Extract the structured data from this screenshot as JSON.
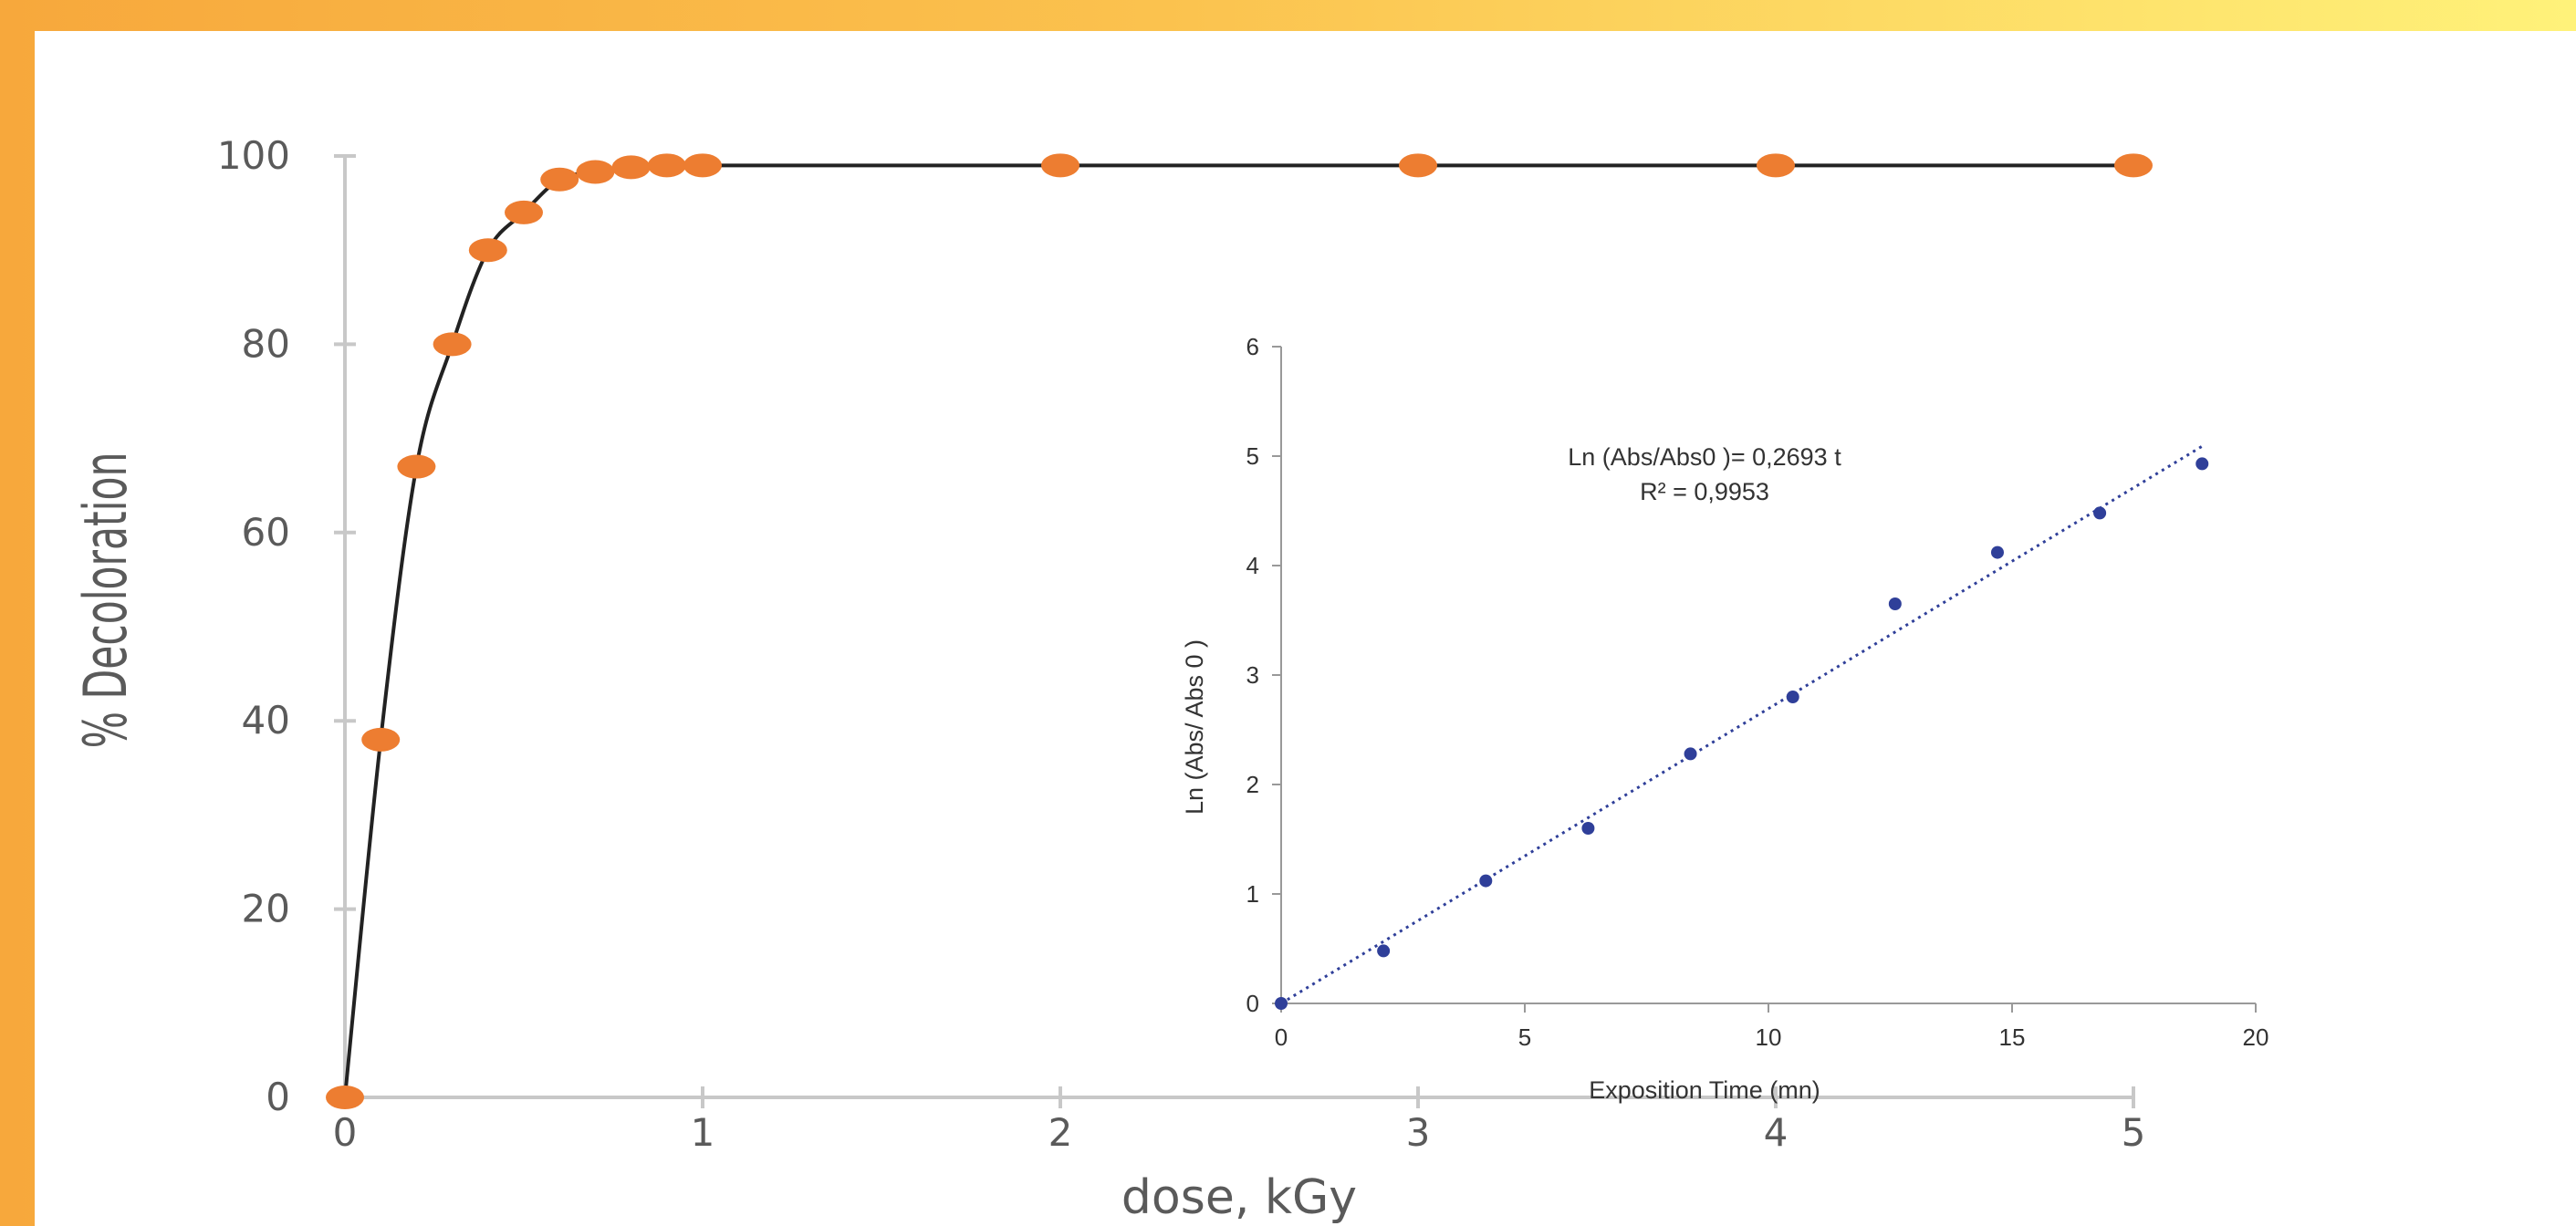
{
  "colors": {
    "main_marker": "#ed7d31",
    "main_line": "#222222",
    "inset_marker": "#2f3f99",
    "inset_trend": "#2f3f99",
    "axis": "#c8c8c8"
  },
  "chart_data": [
    {
      "type": "line",
      "xlabel": "dose, kGy",
      "ylabel": "% Decoloration",
      "xlim": [
        0,
        5
      ],
      "ylim": [
        0,
        100
      ],
      "x_ticks": [
        "0",
        "1",
        "2",
        "3",
        "4",
        "5"
      ],
      "y_ticks": [
        "0",
        "20",
        "40",
        "60",
        "80",
        "100"
      ],
      "grid": false,
      "legend": "none",
      "series": [
        {
          "x": [
            0,
            0.1,
            0.2,
            0.3,
            0.4,
            0.5,
            0.6,
            0.7,
            0.8,
            0.9,
            1,
            2,
            3,
            4,
            5
          ],
          "y": [
            0,
            38,
            67,
            80,
            90,
            94,
            97.5,
            98.3,
            98.8,
            99,
            99,
            99,
            99,
            99,
            99
          ]
        }
      ]
    },
    {
      "type": "scatter",
      "xlabel": "Exposition Time (mn)",
      "ylabel": "Ln (Abs/ Abs 0 )",
      "xlim": [
        0,
        20
      ],
      "ylim": [
        0,
        6
      ],
      "x_ticks": [
        "0",
        "5",
        "10",
        "15",
        "20"
      ],
      "y_ticks": [
        "0",
        "1",
        "2",
        "3",
        "4",
        "5",
        "6"
      ],
      "grid": false,
      "legend": "none",
      "annotation": {
        "equation": "Ln (Abs/Abs0 )= 0,2693 t",
        "r2": "R² = 0,9953"
      },
      "trendline": {
        "type": "linear",
        "slope": 0.2693,
        "intercept": 0,
        "x_range": [
          0,
          18.9
        ]
      },
      "series": [
        {
          "x": [
            0,
            2.1,
            4.2,
            6.3,
            8.4,
            10.5,
            12.6,
            14.7,
            16.8,
            18.9
          ],
          "y": [
            0,
            0.48,
            1.12,
            1.6,
            2.28,
            2.8,
            3.65,
            4.12,
            4.48,
            4.93
          ]
        }
      ]
    }
  ]
}
